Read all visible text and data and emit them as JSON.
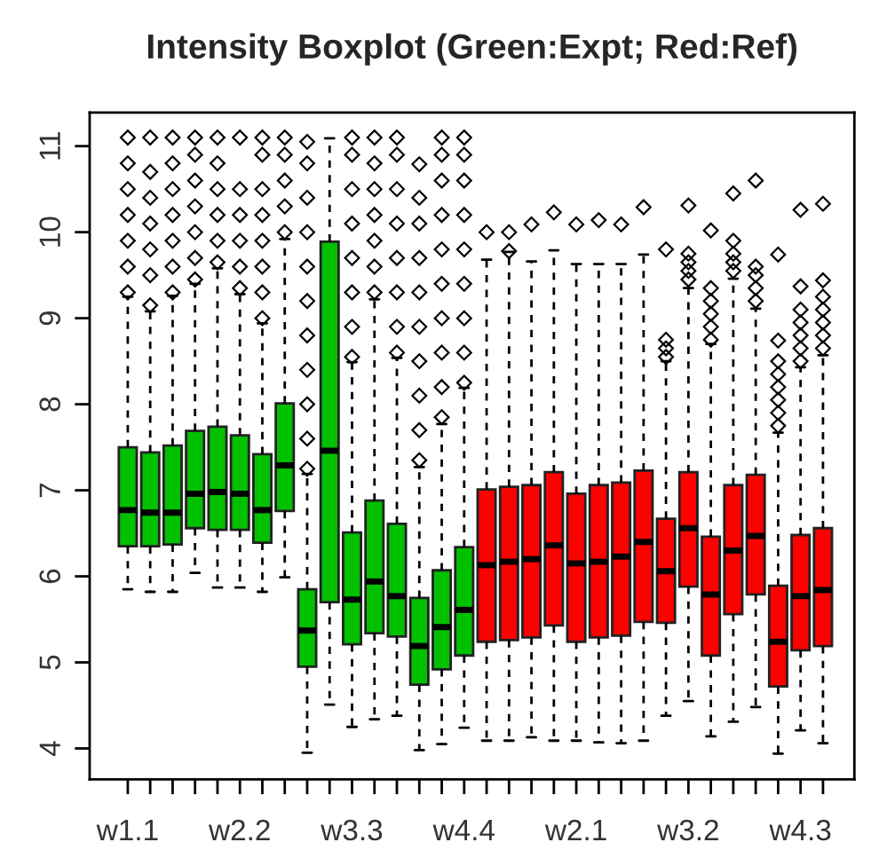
{
  "chart_data": {
    "type": "box",
    "title": "Intensity Boxplot (Green:Expt; Red:Ref)",
    "categories": [
      "w1.1",
      null,
      null,
      null,
      null,
      "w2.2",
      null,
      null,
      null,
      null,
      "w3.3",
      null,
      null,
      null,
      null,
      "w4.4",
      null,
      null,
      null,
      null,
      "w2.1",
      null,
      null,
      null,
      null,
      "w3.2",
      null,
      null,
      null,
      null,
      "w4.3",
      null
    ],
    "colors": [
      "#00c000",
      "#00c000",
      "#00c000",
      "#00c000",
      "#00c000",
      "#00c000",
      "#00c000",
      "#00c000",
      "#00c000",
      "#00c000",
      "#00c000",
      "#00c000",
      "#00c000",
      "#00c000",
      "#00c000",
      "#00c000",
      "#ff0000",
      "#ff0000",
      "#ff0000",
      "#ff0000",
      "#ff0000",
      "#ff0000",
      "#ff0000",
      "#ff0000",
      "#ff0000",
      "#ff0000",
      "#ff0000",
      "#ff0000",
      "#ff0000",
      "#ff0000",
      "#ff0000",
      "#ff0000"
    ],
    "ylim": [
      3.64,
      11.39
    ],
    "yticks": [
      4,
      5,
      6,
      7,
      8,
      9,
      10,
      11
    ],
    "grid": false,
    "boxes": [
      {
        "low": 5.85,
        "q1": 6.35,
        "median": 6.77,
        "q3": 7.5,
        "high": 9.25,
        "outliers": [
          9.3,
          9.6,
          9.9,
          10.2,
          10.5,
          10.8,
          11.1
        ]
      },
      {
        "low": 5.82,
        "q1": 6.35,
        "median": 6.74,
        "q3": 7.44,
        "high": 9.08,
        "outliers": [
          9.15,
          9.5,
          9.8,
          10.1,
          10.4,
          10.7,
          11.1
        ]
      },
      {
        "low": 5.82,
        "q1": 6.37,
        "median": 6.74,
        "q3": 7.52,
        "high": 9.26,
        "outliers": [
          9.3,
          9.6,
          9.9,
          10.2,
          10.5,
          10.8,
          11.1
        ]
      },
      {
        "low": 6.04,
        "q1": 6.56,
        "median": 6.96,
        "q3": 7.69,
        "high": 9.4,
        "outliers": [
          9.45,
          9.7,
          10.0,
          10.3,
          10.6,
          10.9,
          11.1
        ]
      },
      {
        "low": 5.87,
        "q1": 6.54,
        "median": 6.98,
        "q3": 7.74,
        "high": 9.58,
        "outliers": [
          9.65,
          9.9,
          10.2,
          10.5,
          10.8,
          11.1
        ]
      },
      {
        "low": 5.87,
        "q1": 6.54,
        "median": 6.96,
        "q3": 7.64,
        "high": 9.28,
        "outliers": [
          9.35,
          9.6,
          9.9,
          10.2,
          10.5,
          11.1
        ]
      },
      {
        "low": 5.82,
        "q1": 6.39,
        "median": 6.77,
        "q3": 7.42,
        "high": 8.94,
        "outliers": [
          9.0,
          9.3,
          9.6,
          9.9,
          10.2,
          10.5,
          10.9,
          11.1
        ]
      },
      {
        "low": 5.99,
        "q1": 6.76,
        "median": 7.29,
        "q3": 8.01,
        "high": 9.92,
        "outliers": [
          10.0,
          10.3,
          10.6,
          10.9,
          11.1
        ]
      },
      {
        "low": 3.95,
        "q1": 4.95,
        "median": 5.37,
        "q3": 5.85,
        "high": 7.19,
        "outliers": [
          7.25,
          7.6,
          8.0,
          8.4,
          8.8,
          9.2,
          9.6,
          10.0,
          10.4,
          10.8,
          11.05
        ]
      },
      {
        "low": 4.51,
        "q1": 5.7,
        "median": 7.46,
        "q3": 9.89,
        "high": 11.09
      },
      {
        "low": 4.25,
        "q1": 5.21,
        "median": 5.73,
        "q3": 6.51,
        "high": 8.49,
        "outliers": [
          8.55,
          8.9,
          9.3,
          9.7,
          10.1,
          10.5,
          10.9,
          11.1
        ]
      },
      {
        "low": 4.34,
        "q1": 5.34,
        "median": 5.94,
        "q3": 6.88,
        "high": 9.22,
        "outliers": [
          9.3,
          9.6,
          9.9,
          10.2,
          10.5,
          10.8,
          11.1
        ]
      },
      {
        "low": 4.38,
        "q1": 5.3,
        "median": 5.77,
        "q3": 6.61,
        "high": 8.54,
        "outliers": [
          8.6,
          8.9,
          9.3,
          9.7,
          10.1,
          10.5,
          10.9,
          11.1
        ]
      },
      {
        "low": 3.98,
        "q1": 4.74,
        "median": 5.19,
        "q3": 5.75,
        "high": 7.27,
        "outliers": [
          7.35,
          7.7,
          8.1,
          8.5,
          8.9,
          9.3,
          9.7,
          10.1,
          10.4,
          10.79
        ]
      },
      {
        "low": 4.05,
        "q1": 4.92,
        "median": 5.41,
        "q3": 6.07,
        "high": 7.77,
        "outliers": [
          7.85,
          8.2,
          8.6,
          9.0,
          9.4,
          9.8,
          10.2,
          10.6,
          10.9,
          11.1
        ]
      },
      {
        "low": 4.24,
        "q1": 5.08,
        "median": 5.61,
        "q3": 6.34,
        "high": 8.19,
        "outliers": [
          8.25,
          8.6,
          9.0,
          9.4,
          9.8,
          10.2,
          10.6,
          10.9,
          11.1
        ]
      },
      {
        "low": 4.09,
        "q1": 5.24,
        "median": 6.13,
        "q3": 7.01,
        "high": 9.68,
        "outliers": [
          10.0
        ]
      },
      {
        "low": 4.09,
        "q1": 5.26,
        "median": 6.17,
        "q3": 7.04,
        "high": 9.77,
        "outliers": [
          9.78,
          10.0
        ]
      },
      {
        "low": 4.13,
        "q1": 5.29,
        "median": 6.2,
        "q3": 7.06,
        "high": 9.66,
        "outliers": [
          10.09
        ]
      },
      {
        "low": 4.09,
        "q1": 5.43,
        "median": 6.36,
        "q3": 7.21,
        "high": 9.79,
        "outliers": [
          10.23
        ]
      },
      {
        "low": 4.09,
        "q1": 5.24,
        "median": 6.15,
        "q3": 6.96,
        "high": 9.63,
        "outliers": [
          10.09
        ]
      },
      {
        "low": 4.07,
        "q1": 5.29,
        "median": 6.17,
        "q3": 7.06,
        "high": 9.63,
        "outliers": [
          10.14
        ]
      },
      {
        "low": 4.06,
        "q1": 5.31,
        "median": 6.23,
        "q3": 7.09,
        "high": 9.63,
        "outliers": [
          10.09
        ]
      },
      {
        "low": 4.09,
        "q1": 5.47,
        "median": 6.4,
        "q3": 7.23,
        "high": 9.74,
        "outliers": [
          10.29
        ]
      },
      {
        "low": 4.38,
        "q1": 5.46,
        "median": 6.06,
        "q3": 6.67,
        "high": 8.5,
        "outliers": [
          8.55,
          8.65,
          8.75,
          9.8
        ]
      },
      {
        "low": 4.55,
        "q1": 5.88,
        "median": 6.56,
        "q3": 7.21,
        "high": 9.35,
        "outliers": [
          9.45,
          9.55,
          9.65,
          9.75,
          10.31
        ]
      },
      {
        "low": 4.14,
        "q1": 5.08,
        "median": 5.79,
        "q3": 6.46,
        "high": 8.7,
        "outliers": [
          8.75,
          8.9,
          9.05,
          9.2,
          9.35,
          10.02
        ]
      },
      {
        "low": 4.31,
        "q1": 5.56,
        "median": 6.3,
        "q3": 7.06,
        "high": 9.46,
        "outliers": [
          9.55,
          9.65,
          9.75,
          9.9,
          10.45
        ]
      },
      {
        "low": 4.48,
        "q1": 5.79,
        "median": 6.47,
        "q3": 7.18,
        "high": 9.11,
        "outliers": [
          9.2,
          9.35,
          9.5,
          9.6,
          10.6
        ]
      },
      {
        "low": 3.94,
        "q1": 4.72,
        "median": 5.24,
        "q3": 5.89,
        "high": 7.67,
        "outliers": [
          7.75,
          7.9,
          8.05,
          8.2,
          8.35,
          8.5,
          8.74,
          9.74
        ]
      },
      {
        "low": 4.21,
        "q1": 5.14,
        "median": 5.77,
        "q3": 6.48,
        "high": 8.43,
        "outliers": [
          8.5,
          8.65,
          8.8,
          8.95,
          9.1,
          9.37,
          10.26
        ]
      },
      {
        "low": 4.06,
        "q1": 5.19,
        "median": 5.84,
        "q3": 6.56,
        "high": 8.57,
        "outliers": [
          8.65,
          8.8,
          8.95,
          9.1,
          9.25,
          9.44,
          10.33
        ]
      }
    ]
  }
}
